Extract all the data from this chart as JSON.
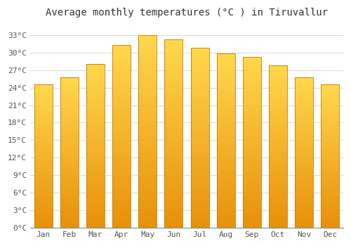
{
  "title": "Average monthly temperatures (°C ) in Tiruvallur",
  "months": [
    "Jan",
    "Feb",
    "Mar",
    "Apr",
    "May",
    "Jun",
    "Jul",
    "Aug",
    "Sep",
    "Oct",
    "Nov",
    "Dec"
  ],
  "temperatures": [
    24.5,
    25.8,
    28.0,
    31.3,
    33.0,
    32.3,
    30.8,
    29.8,
    29.3,
    27.8,
    25.8,
    24.5
  ],
  "bar_color_bottom": "#E8900A",
  "bar_color_top": "#FFD84D",
  "bar_edge_color": "#C87A00",
  "ylim": [
    0,
    35
  ],
  "ytick_max": 33,
  "ytick_step": 3,
  "background_color": "#FFFFFF",
  "plot_bg_color": "#FFFFFF",
  "grid_color": "#DDDDDD",
  "title_fontsize": 10,
  "tick_fontsize": 8,
  "bar_width": 0.7
}
